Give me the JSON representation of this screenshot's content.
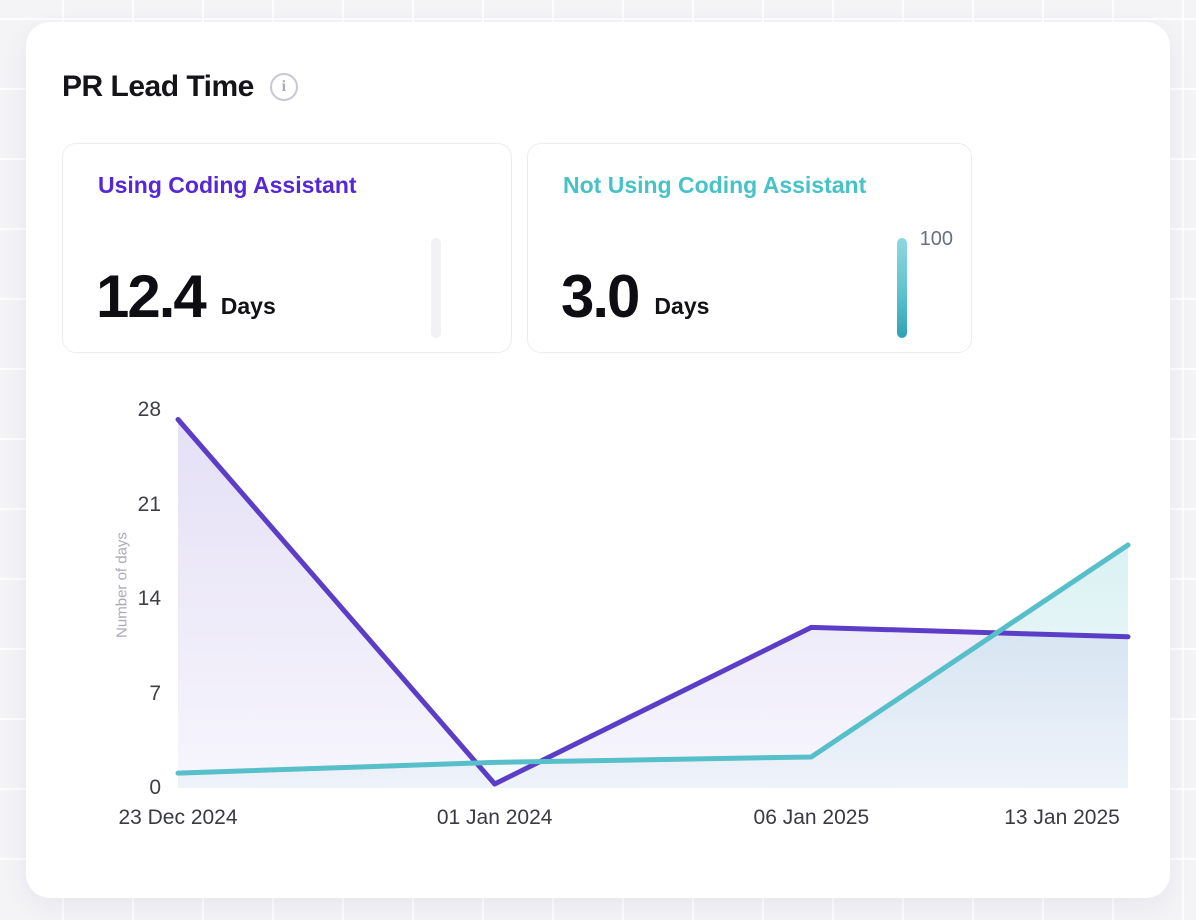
{
  "header": {
    "title": "PR Lead Time"
  },
  "stat_cards": [
    {
      "label": "Using Coding Assistant",
      "value": "12.4",
      "unit": "Days",
      "accent": "#5527D6",
      "gauge": {
        "value_label": "",
        "filled": false
      }
    },
    {
      "label": "Not Using Coding Assistant",
      "value": "3.0",
      "unit": "Days",
      "accent": "#47C2C6",
      "gauge": {
        "value_label": "100",
        "filled": true
      }
    }
  ],
  "chart_data": {
    "type": "line",
    "x": [
      "23 Dec 2024",
      "01 Jan 2024",
      "06 Jan 2025",
      "13 Jan 2025"
    ],
    "series": [
      {
        "name": "Using Coding Assistant",
        "color": "#5B3DC8",
        "values": [
          27.3,
          0.3,
          11.9,
          11.2
        ]
      },
      {
        "name": "Not Using Coding Assistant",
        "color": "#56BFC9",
        "values": [
          1.1,
          1.9,
          2.3,
          18.0
        ]
      }
    ],
    "title": "PR Lead Time",
    "xlabel": "",
    "ylabel": "Number of days",
    "yticks": [
      0,
      7,
      14,
      21,
      28
    ],
    "ylim": [
      0,
      28
    ],
    "grid": false,
    "area": true,
    "legend": "none"
  }
}
